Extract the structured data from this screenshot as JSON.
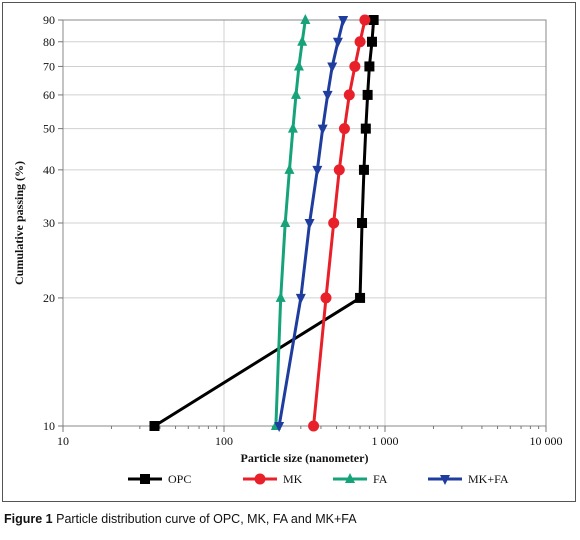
{
  "chart_data": {
    "type": "line",
    "xlabel": "Particle size (nanometer)",
    "ylabel": "Cumulative passing (%)",
    "x_scale": "log",
    "y_scale": "log",
    "xlim": [
      10,
      10000
    ],
    "ylim": [
      10,
      90
    ],
    "x_ticks": [
      10,
      100,
      1000,
      10000
    ],
    "x_tick_labels": [
      "10",
      "100",
      "1 000",
      "10 000"
    ],
    "y_ticks": [
      10,
      20,
      30,
      40,
      50,
      60,
      70,
      80,
      90
    ],
    "y_tick_labels": [
      "10",
      "20",
      "30",
      "40",
      "50",
      "60",
      "70",
      "80",
      "90"
    ],
    "grid": true,
    "legend_position": "bottom",
    "series": [
      {
        "name": "OPC",
        "color": "#000000",
        "marker": "square",
        "x": [
          37,
          700,
          720,
          740,
          760,
          780,
          800,
          830,
          850
        ],
        "y": [
          10,
          20,
          30,
          40,
          50,
          60,
          70,
          80,
          90
        ]
      },
      {
        "name": "MK",
        "color": "#e8202a",
        "marker": "circle",
        "x": [
          360,
          430,
          480,
          520,
          560,
          600,
          650,
          700,
          750
        ],
        "y": [
          10,
          20,
          30,
          40,
          50,
          60,
          70,
          80,
          90
        ]
      },
      {
        "name": "FA",
        "color": "#16a37a",
        "marker": "triangle-up",
        "x": [
          210,
          225,
          240,
          255,
          268,
          280,
          292,
          306,
          320
        ],
        "y": [
          10,
          20,
          30,
          40,
          50,
          60,
          70,
          80,
          90
        ]
      },
      {
        "name": "MK+FA",
        "color": "#1f3d9e",
        "marker": "triangle-down",
        "x": [
          220,
          300,
          340,
          380,
          410,
          440,
          470,
          510,
          550
        ],
        "y": [
          10,
          20,
          30,
          40,
          50,
          60,
          70,
          80,
          90
        ]
      }
    ]
  },
  "caption": {
    "label": "Figure 1",
    "text": "Particle distribution curve of OPC, MK, FA and MK+FA"
  }
}
